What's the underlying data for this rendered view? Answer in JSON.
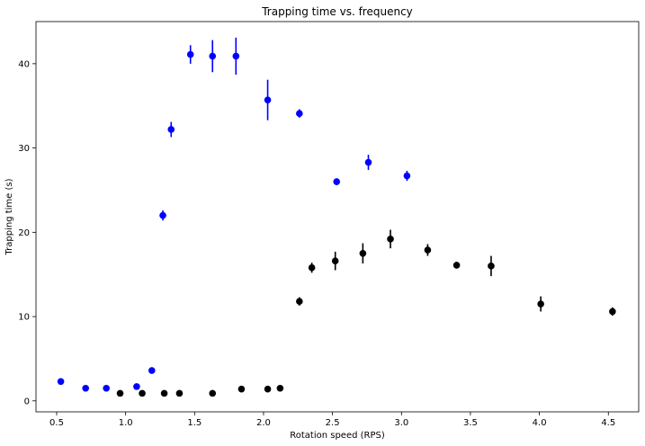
{
  "chart_data": {
    "type": "scatter",
    "title": "Trapping time vs. frequency",
    "xlabel": "Rotation speed (RPS)",
    "ylabel": "Trapping time (s)",
    "xlim": [
      0.35,
      4.72
    ],
    "ylim": [
      -1.3,
      45
    ],
    "xticks": [
      "0.5",
      "1.0",
      "1.5",
      "2.0",
      "2.5",
      "3.0",
      "3.5",
      "4.0",
      "4.5"
    ],
    "yticks": [
      "0",
      "10",
      "20",
      "30",
      "40"
    ],
    "grid": false,
    "error_bars": true,
    "series": [
      {
        "color": "#0000ff",
        "points": [
          {
            "x": 0.53,
            "y": 2.3,
            "err": 0
          },
          {
            "x": 0.71,
            "y": 1.5,
            "err": 0
          },
          {
            "x": 0.86,
            "y": 1.5,
            "err": 0
          },
          {
            "x": 1.08,
            "y": 1.7,
            "err": 0
          },
          {
            "x": 1.19,
            "y": 3.6,
            "err": 0
          },
          {
            "x": 1.27,
            "y": 22.0,
            "err": 0.6
          },
          {
            "x": 1.33,
            "y": 32.2,
            "err": 0.9
          },
          {
            "x": 1.47,
            "y": 41.1,
            "err": 1.1
          },
          {
            "x": 1.63,
            "y": 40.9,
            "err": 1.9
          },
          {
            "x": 1.8,
            "y": 40.9,
            "err": 2.2
          },
          {
            "x": 2.03,
            "y": 35.7,
            "err": 2.4
          },
          {
            "x": 2.26,
            "y": 34.1,
            "err": 0.5
          },
          {
            "x": 2.53,
            "y": 26.0,
            "err": 0.4
          },
          {
            "x": 2.76,
            "y": 28.3,
            "err": 0.9
          },
          {
            "x": 3.04,
            "y": 26.7,
            "err": 0.6
          }
        ]
      },
      {
        "color": "#000000",
        "points": [
          {
            "x": 0.96,
            "y": 0.9,
            "err": 0
          },
          {
            "x": 1.12,
            "y": 0.9,
            "err": 0
          },
          {
            "x": 1.28,
            "y": 0.9,
            "err": 0
          },
          {
            "x": 1.39,
            "y": 0.9,
            "err": 0
          },
          {
            "x": 1.63,
            "y": 0.9,
            "err": 0
          },
          {
            "x": 1.84,
            "y": 1.4,
            "err": 0
          },
          {
            "x": 2.03,
            "y": 1.4,
            "err": 0
          },
          {
            "x": 2.12,
            "y": 1.5,
            "err": 0
          },
          {
            "x": 2.26,
            "y": 11.8,
            "err": 0.5
          },
          {
            "x": 2.35,
            "y": 15.8,
            "err": 0.6
          },
          {
            "x": 2.52,
            "y": 16.6,
            "err": 1.1
          },
          {
            "x": 2.72,
            "y": 17.5,
            "err": 1.2
          },
          {
            "x": 2.92,
            "y": 19.2,
            "err": 1.1
          },
          {
            "x": 3.19,
            "y": 17.9,
            "err": 0.7
          },
          {
            "x": 3.4,
            "y": 16.1,
            "err": 0.4
          },
          {
            "x": 3.65,
            "y": 16.0,
            "err": 1.2
          },
          {
            "x": 4.01,
            "y": 11.5,
            "err": 0.9
          },
          {
            "x": 4.53,
            "y": 10.6,
            "err": 0.5
          }
        ]
      }
    ]
  }
}
